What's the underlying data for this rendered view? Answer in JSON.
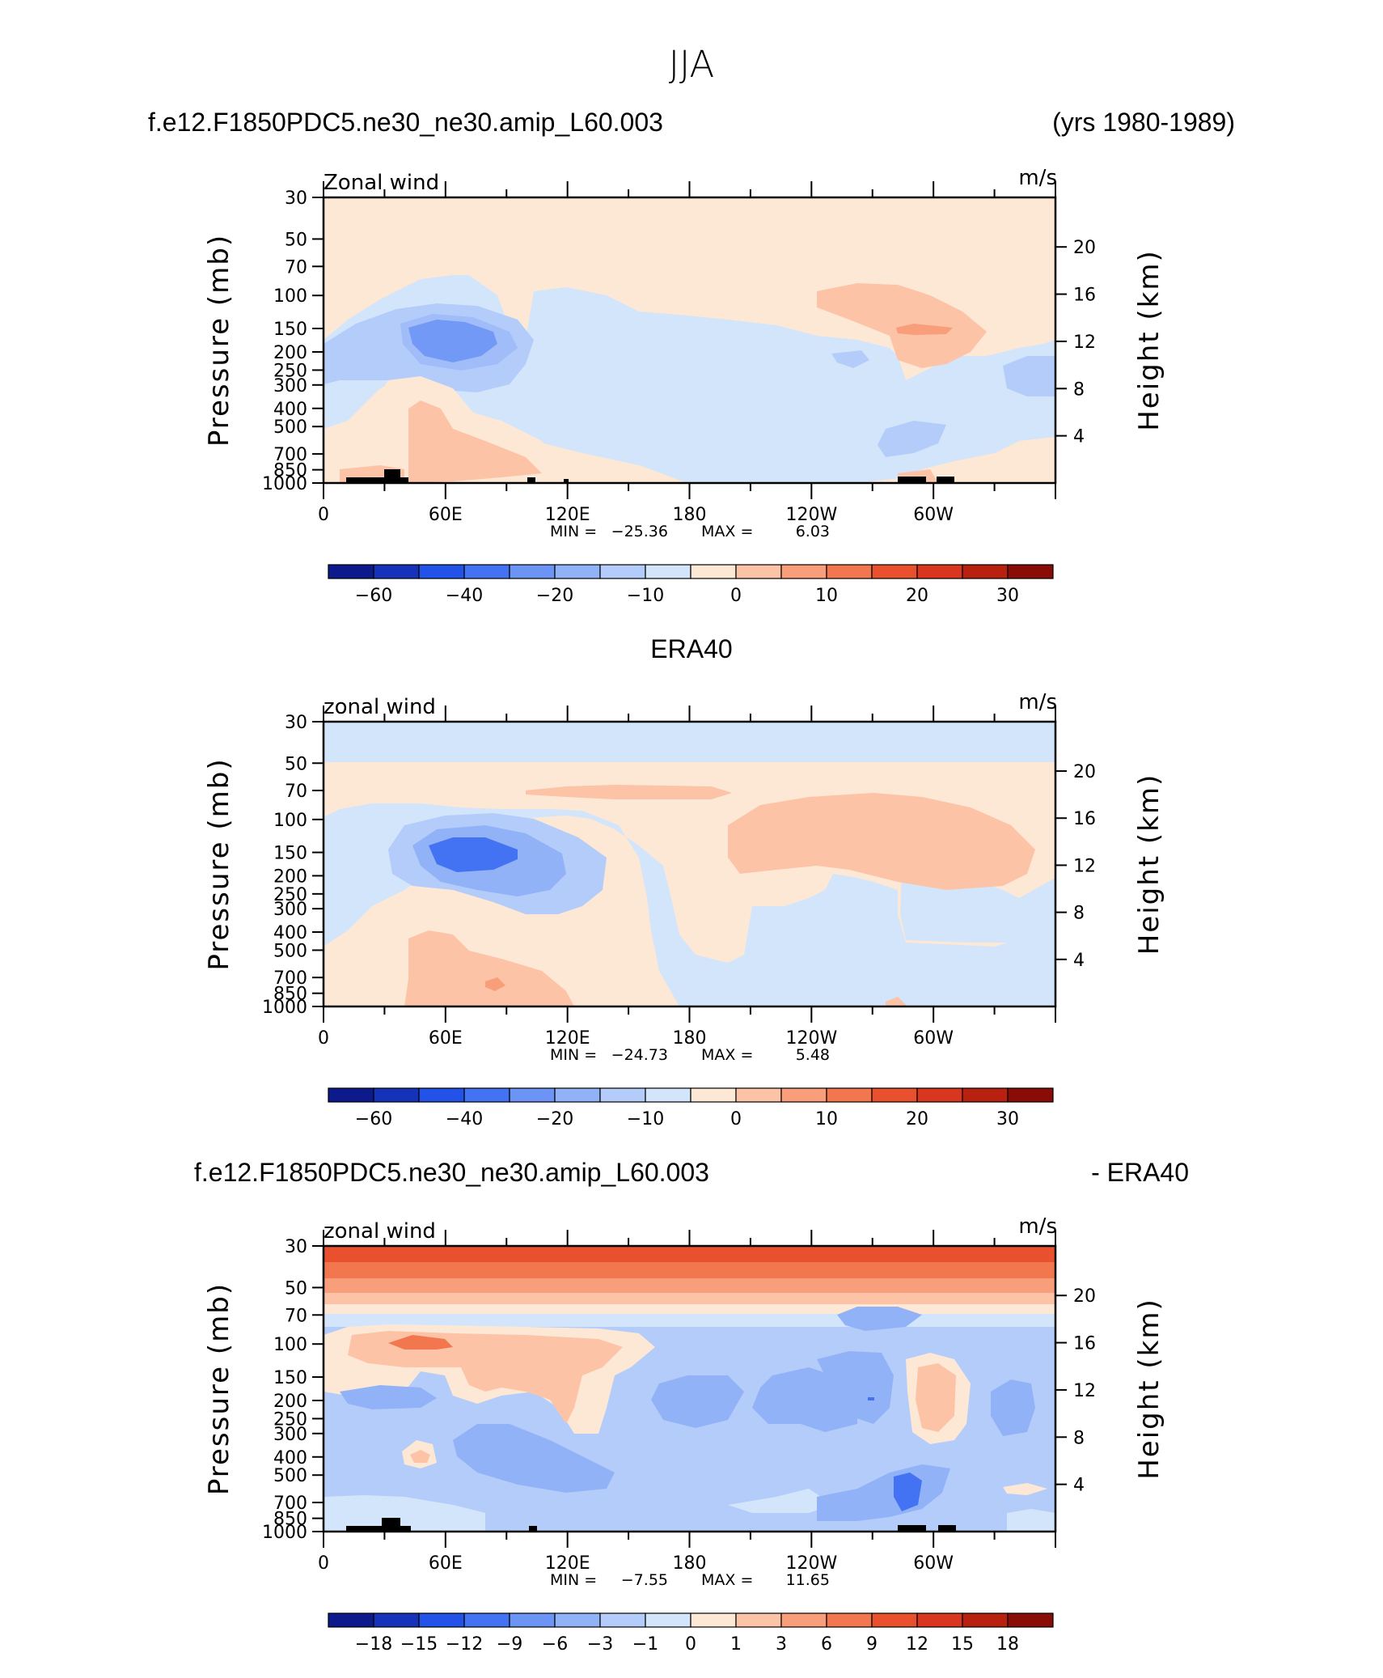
{
  "figure": {
    "title": "JJA",
    "header_left": "f.e12.F1850PDC5.ne30_ne30.amip_L60.003",
    "header_right": "(yrs 1980-1989)",
    "middle_heading": "ERA40",
    "diff_header_left": "f.e12.F1850PDC5.ne30_ne30.amip_L60.003",
    "diff_header_right": "- ERA40"
  },
  "chart_data": [
    {
      "type": "heatmap",
      "panel": "model",
      "label_left": "Zonal wind",
      "label_right": "m/s",
      "ylabel": "Pressure (mb)",
      "ylabel_right": "Height (km)",
      "pressure_ticks": [
        "30",
        "50",
        "70",
        "100",
        "150",
        "200",
        "250",
        "300",
        "400",
        "500",
        "700",
        "850",
        "1000"
      ],
      "height_ticks": [
        "4",
        "8",
        "12",
        "16",
        "20"
      ],
      "x_ticks": [
        "0",
        "60E",
        "120E",
        "180",
        "120W",
        "60W"
      ],
      "stats": {
        "min_label": "MIN =",
        "min": "−25.36",
        "max_label": "MAX =",
        "max": "6.03"
      },
      "colorbar": {
        "labels": [
          "−60",
          "−40",
          "−20",
          "−10",
          "0",
          "10",
          "20",
          "30"
        ],
        "colors": [
          "#0d1a8c",
          "#1433b8",
          "#2252e8",
          "#4373f2",
          "#6b94f5",
          "#92b2f8",
          "#b4ccfa",
          "#d3e5fb",
          "#fde8d6",
          "#fcc3a6",
          "#f89e7a",
          "#f2774f",
          "#e8502e",
          "#d8361f",
          "#b8200f",
          "#8a0c06"
        ]
      }
    },
    {
      "type": "heatmap",
      "panel": "ERA40",
      "label_left": "zonal wind",
      "label_right": "m/s",
      "ylabel": "Pressure (mb)",
      "ylabel_right": "Height (km)",
      "pressure_ticks": [
        "30",
        "50",
        "70",
        "100",
        "150",
        "200",
        "250",
        "300",
        "400",
        "500",
        "700",
        "850",
        "1000"
      ],
      "height_ticks": [
        "4",
        "8",
        "12",
        "16",
        "20"
      ],
      "x_ticks": [
        "0",
        "60E",
        "120E",
        "180",
        "120W",
        "60W"
      ],
      "stats": {
        "min_label": "MIN =",
        "min": "−24.73",
        "max_label": "MAX =",
        "max": "5.48"
      },
      "colorbar": {
        "labels": [
          "−60",
          "−40",
          "−20",
          "−10",
          "0",
          "10",
          "20",
          "30"
        ],
        "colors": [
          "#0d1a8c",
          "#1433b8",
          "#2252e8",
          "#4373f2",
          "#6b94f5",
          "#92b2f8",
          "#b4ccfa",
          "#d3e5fb",
          "#fde8d6",
          "#fcc3a6",
          "#f89e7a",
          "#f2774f",
          "#e8502e",
          "#d8361f",
          "#b8200f",
          "#8a0c06"
        ]
      }
    },
    {
      "type": "heatmap",
      "panel": "difference",
      "label_left": "zonal wind",
      "label_right": "m/s",
      "ylabel": "Pressure (mb)",
      "ylabel_right": "Height (km)",
      "pressure_ticks": [
        "30",
        "50",
        "70",
        "100",
        "150",
        "200",
        "250",
        "300",
        "400",
        "500",
        "700",
        "850",
        "1000"
      ],
      "height_ticks": [
        "4",
        "8",
        "12",
        "16",
        "20"
      ],
      "x_ticks": [
        "0",
        "60E",
        "120E",
        "180",
        "120W",
        "60W"
      ],
      "stats": {
        "min_label": "MIN =",
        "min": "−7.55",
        "max_label": "MAX =",
        "max": "11.65"
      },
      "colorbar": {
        "labels": [
          "−18",
          "−15",
          "−12",
          "−9",
          "−6",
          "−3",
          "−1",
          "0",
          "1",
          "3",
          "6",
          "9",
          "12",
          "15",
          "18"
        ],
        "colors": [
          "#0d1a8c",
          "#1433b8",
          "#2252e8",
          "#4373f2",
          "#6b94f5",
          "#92b2f8",
          "#b4ccfa",
          "#d3e5fb",
          "#fde8d6",
          "#fcc3a6",
          "#f89e7a",
          "#f2774f",
          "#e8502e",
          "#d8361f",
          "#b8200f",
          "#8a0c06"
        ]
      }
    }
  ]
}
